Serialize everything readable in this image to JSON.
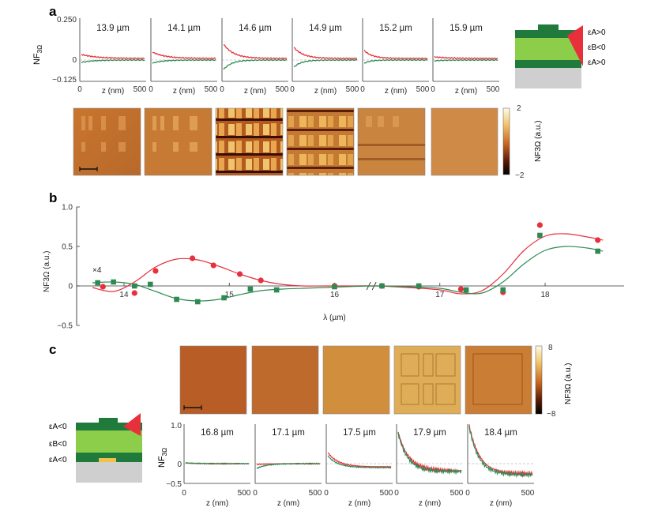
{
  "panel_labels": {
    "a": "a",
    "b": "b",
    "c": "c"
  },
  "colors": {
    "red": "#e8303d",
    "green": "#2e8a52",
    "dark_green": "#1f7a3c",
    "light_green": "#8ccd49",
    "gold": "#f1c14b",
    "gray": "#cfcfcf"
  },
  "panel_a": {
    "ylabel_main": "NF",
    "ylabel_sub": "3Ω",
    "yticks": [
      "0.250",
      "0",
      "−0.125"
    ],
    "xlabel": "z (nm)",
    "xticks": [
      "0",
      "500"
    ],
    "wavelengths": [
      "13.9 µm",
      "14.1 µm",
      "14.6 µm",
      "14.9 µm",
      "15.2 µm",
      "15.9 µm"
    ],
    "colorbar_ticks": [
      "2",
      "−2"
    ],
    "colorbar_label": "NF3Ω (a.u.)",
    "stack_labels": [
      "εA>0",
      "εB<0",
      "εA>0"
    ]
  },
  "panel_c": {
    "ylabel_main": "NF",
    "ylabel_sub": "3Ω",
    "yticks": [
      "1.0",
      "0",
      "−0.5"
    ],
    "xlabel": "z (nm)",
    "xticks": [
      "0",
      "500"
    ],
    "wavelengths": [
      "16.8 µm",
      "17.1 µm",
      "17.5 µm",
      "17.9 µm",
      "18.4 µm"
    ],
    "colorbar_ticks": [
      "8",
      "−8"
    ],
    "colorbar_label": "NF3Ω (a.u.)",
    "stack_labels": [
      "εA<0",
      "εB<0",
      "εA<0"
    ]
  },
  "chart_data": [
    {
      "id": "b",
      "type": "line",
      "xlabel": "λ (µm)",
      "ylabel": "NF3Ω (a.u.)",
      "annotation": "×4",
      "xticks": [
        "14",
        "15",
        "16",
        "17",
        "18"
      ],
      "yticks": [
        "1.0",
        "0.5",
        "0",
        "−0.5"
      ],
      "ylim": [
        -0.5,
        1.0
      ],
      "series": [
        {
          "color": "#e8303d",
          "marker": "circle",
          "x": [
            13.8,
            14.1,
            14.3,
            14.65,
            14.85,
            15.1,
            15.3,
            16.0,
            16.45,
            16.8,
            17.2,
            17.6,
            17.95,
            18.5
          ],
          "y": [
            -0.01,
            -0.09,
            0.19,
            0.35,
            0.26,
            0.15,
            0.07,
            0.0,
            0.0,
            -0.01,
            -0.04,
            -0.08,
            0.77,
            0.58
          ]
        },
        {
          "color": "#2e8a52",
          "marker": "square",
          "x": [
            13.75,
            13.9,
            14.1,
            14.25,
            14.5,
            14.7,
            14.95,
            15.2,
            15.45,
            16.0,
            16.45,
            16.8,
            17.25,
            17.6,
            17.95,
            18.5
          ],
          "y": [
            0.04,
            0.05,
            0.0,
            0.02,
            -0.17,
            -0.2,
            -0.15,
            -0.04,
            -0.05,
            -0.01,
            0.0,
            0.0,
            -0.05,
            -0.05,
            0.64,
            0.44
          ]
        },
        {
          "color": "#e8303d",
          "role": "fit",
          "x": [
            13.7,
            13.9,
            14.1,
            14.3,
            14.5,
            14.7,
            14.9,
            15.1,
            15.3,
            15.5,
            15.7,
            15.9,
            16.1,
            16.4,
            16.7,
            17.0,
            17.2,
            17.4,
            17.6,
            17.8,
            18.0,
            18.2,
            18.4,
            18.55
          ],
          "y": [
            -0.02,
            -0.07,
            0.05,
            0.24,
            0.34,
            0.33,
            0.25,
            0.15,
            0.07,
            0.02,
            0.0,
            0.0,
            0.0,
            0.0,
            -0.02,
            -0.05,
            -0.1,
            -0.06,
            0.15,
            0.45,
            0.63,
            0.66,
            0.62,
            0.58
          ]
        },
        {
          "color": "#2e8a52",
          "role": "fit",
          "x": [
            13.7,
            13.9,
            14.1,
            14.3,
            14.5,
            14.7,
            14.9,
            15.1,
            15.3,
            15.5,
            15.7,
            15.9,
            16.1,
            16.4,
            16.7,
            17.0,
            17.2,
            17.4,
            17.6,
            17.8,
            18.0,
            18.2,
            18.4,
            18.55
          ],
          "y": [
            0.04,
            0.05,
            0.02,
            -0.07,
            -0.16,
            -0.19,
            -0.17,
            -0.11,
            -0.06,
            -0.04,
            -0.03,
            -0.02,
            -0.01,
            0.0,
            -0.01,
            -0.03,
            -0.08,
            -0.09,
            0.05,
            0.28,
            0.45,
            0.5,
            0.48,
            0.44
          ]
        }
      ]
    }
  ]
}
